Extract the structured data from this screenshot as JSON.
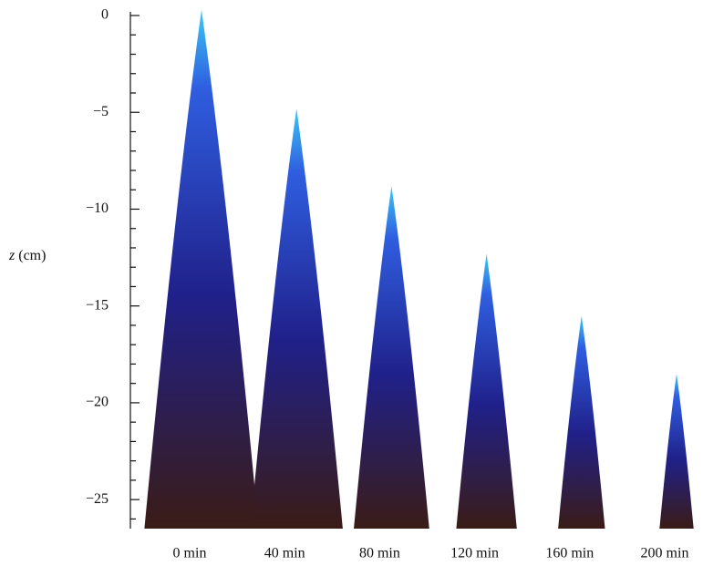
{
  "chart_data": {
    "type": "cone",
    "ylabel": "z (cm)",
    "categories": [
      "0 min",
      "40 min",
      "80 min",
      "120 min",
      "160 min",
      "200 min"
    ],
    "values": [
      0.3,
      -4.8,
      -8.8,
      -12.3,
      -15.5,
      -18.5
    ],
    "ylim": [
      -26.5,
      0.5
    ],
    "yticks": [
      {
        "value": 0,
        "label": "0"
      },
      {
        "value": -5,
        "label": "−5"
      },
      {
        "value": -10,
        "label": "−10"
      },
      {
        "value": -15,
        "label": "−15"
      },
      {
        "value": -20,
        "label": "−20"
      },
      {
        "value": -25,
        "label": "−25"
      }
    ],
    "yminorticks": [
      -26,
      -24,
      -23,
      -22,
      -21,
      -19,
      -18,
      -17,
      -16,
      -14,
      -13,
      -12,
      -11,
      -9,
      -8,
      -7,
      -6,
      -4,
      -3,
      -2,
      -1
    ],
    "colors": [
      "#3a1c16",
      "#20208a",
      "#2f5ee0",
      "#3cc8f5"
    ]
  }
}
